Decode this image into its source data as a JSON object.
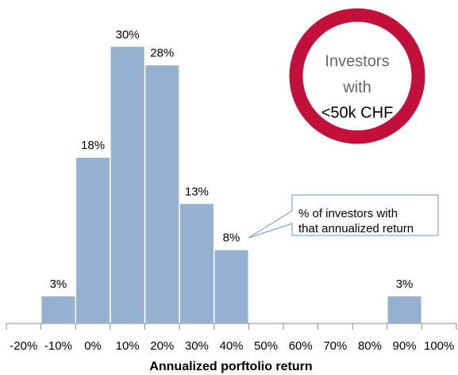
{
  "chart_data": {
    "type": "bar",
    "x_label": "Annualized porftolio return",
    "categories": [
      "-20%",
      "-10%",
      "0%",
      "10%",
      "20%",
      "30%",
      "40%",
      "50%",
      "60%",
      "70%",
      "80%",
      "90%",
      "100%"
    ],
    "values": [
      null,
      3,
      18,
      30,
      28,
      13,
      8,
      null,
      null,
      null,
      null,
      3,
      null
    ],
    "value_labels": [
      null,
      "3%",
      "18%",
      "30%",
      "28%",
      "13%",
      "8%",
      null,
      null,
      null,
      null,
      "3%",
      null
    ],
    "color": "#95b1cf",
    "ylim": [
      0,
      32
    ],
    "annotations": {
      "badge": [
        "Investors",
        "with",
        "<50k CHF"
      ],
      "callout": [
        "% of investors with",
        "that annualized return"
      ]
    }
  }
}
